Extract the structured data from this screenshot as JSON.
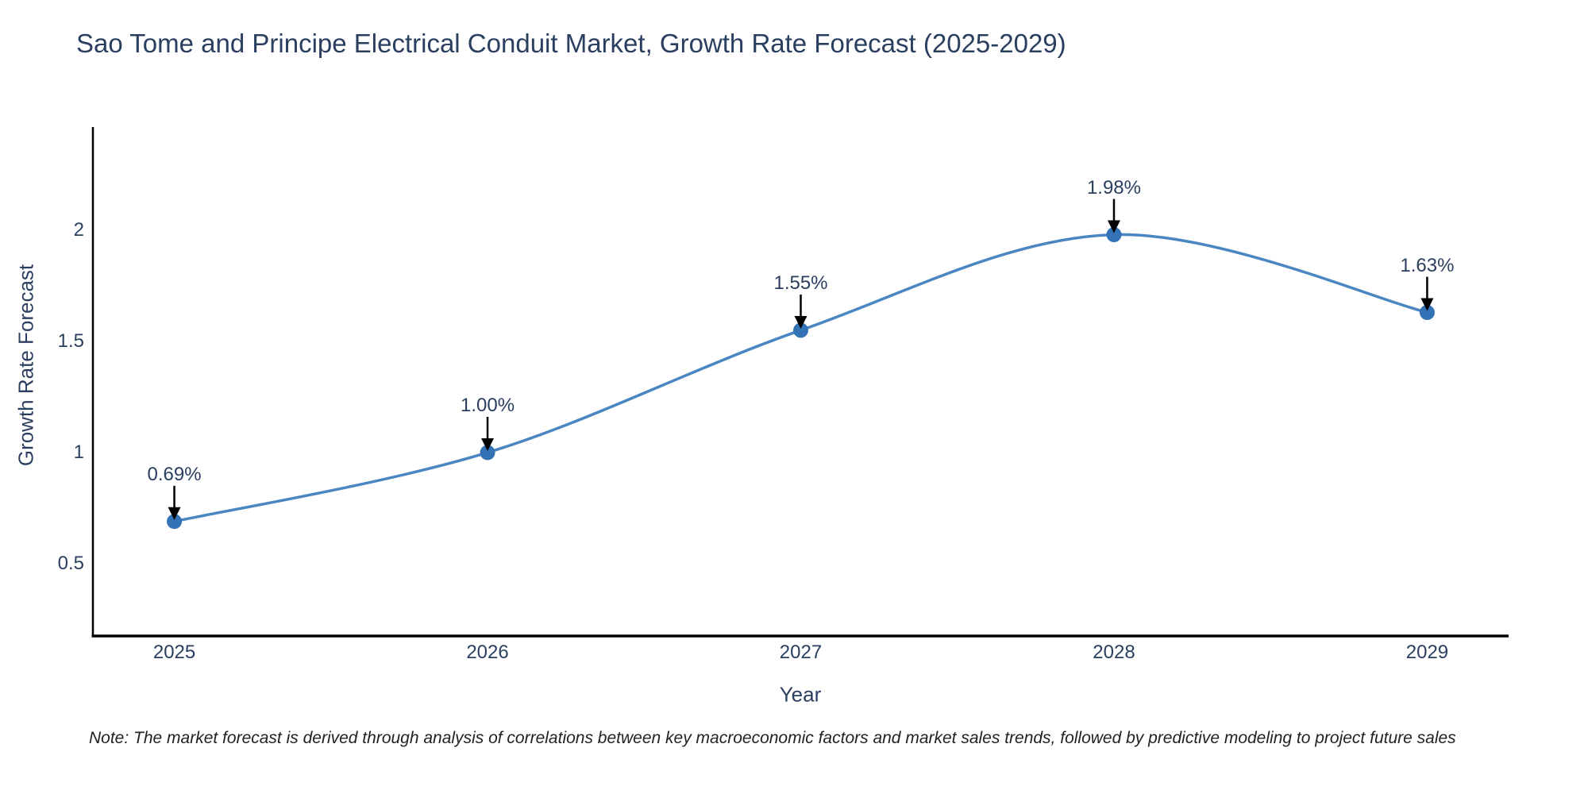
{
  "title": "Sao Tome and Principe Electrical Conduit Market, Growth Rate Forecast (2025-2029)",
  "note": "Note: The market forecast is derived through analysis of correlations between key macroeconomic factors and market sales trends, followed by predictive modeling to project future sales",
  "chart_data": {
    "type": "line",
    "title": "Sao Tome and Principe Electrical Conduit Market, Growth Rate Forecast (2025-2029)",
    "xlabel": "Year",
    "ylabel": "Growth Rate Forecast",
    "x": [
      2025,
      2026,
      2027,
      2028,
      2029
    ],
    "series": [
      {
        "name": "Growth Rate Forecast",
        "values": [
          0.69,
          1.0,
          1.55,
          1.98,
          1.63
        ]
      }
    ],
    "point_labels": [
      "0.69%",
      "1.00%",
      "1.55%",
      "1.98%",
      "1.63%"
    ],
    "xticks": [
      "2025",
      "2026",
      "2027",
      "2028",
      "2029"
    ],
    "yticks": [
      0.5,
      1,
      1.5,
      2
    ],
    "ytick_labels": [
      "0.5",
      "1",
      "1.5",
      "2"
    ],
    "xlim": [
      2024.74,
      2029.26
    ],
    "ylim": [
      0.175,
      2.464
    ],
    "grid": false,
    "legend_position": "none",
    "line_smoothing": "spline",
    "annotation_style": "value labels with black down-arrows onto markers",
    "colors": {
      "line": "#4a86c2",
      "marker": "#3372b4",
      "axis": "#000000",
      "text": "#2a3f5f",
      "arrow": "#000000",
      "background": "#ffffff"
    }
  }
}
